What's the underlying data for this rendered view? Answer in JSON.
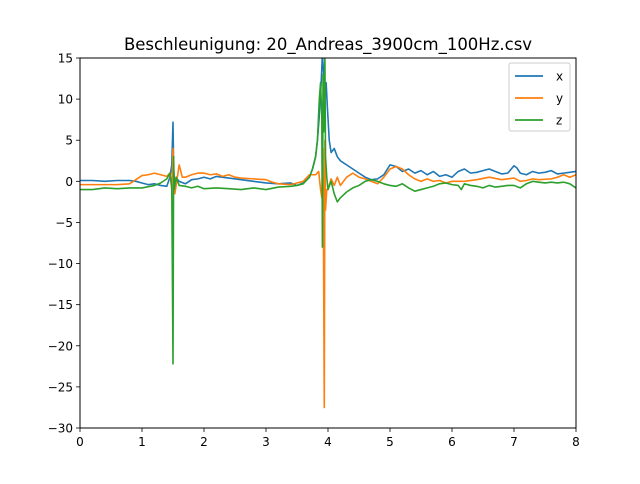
{
  "chart_data": {
    "type": "line",
    "title": "Beschleunigung: 20_Andreas_3900cm_100Hz.csv",
    "xlabel": "",
    "ylabel": "",
    "xlim": [
      0,
      8
    ],
    "ylim": [
      -30,
      15
    ],
    "xticks": [
      0,
      1,
      2,
      3,
      4,
      5,
      6,
      7,
      8
    ],
    "yticks": [
      15,
      10,
      5,
      0,
      -5,
      -10,
      -15,
      -20,
      -25,
      -30
    ],
    "grid": false,
    "legend_position": "top-right",
    "series": [
      {
        "name": "x",
        "color": "#1f77b4",
        "points": [
          [
            0,
            0.1
          ],
          [
            0.2,
            0.1
          ],
          [
            0.4,
            0.0
          ],
          [
            0.6,
            0.1
          ],
          [
            0.8,
            0.1
          ],
          [
            0.9,
            0.0
          ],
          [
            1.0,
            -0.2
          ],
          [
            1.1,
            -0.4
          ],
          [
            1.2,
            -0.3
          ],
          [
            1.3,
            -0.5
          ],
          [
            1.4,
            -0.6
          ],
          [
            1.45,
            0.5
          ],
          [
            1.48,
            2.0
          ],
          [
            1.5,
            7.2
          ],
          [
            1.51,
            1.5
          ],
          [
            1.53,
            -0.5
          ],
          [
            1.56,
            0.3
          ],
          [
            1.6,
            0.0
          ],
          [
            1.7,
            -0.3
          ],
          [
            1.8,
            0.2
          ],
          [
            1.9,
            0.3
          ],
          [
            2.0,
            0.5
          ],
          [
            2.1,
            0.3
          ],
          [
            2.2,
            0.6
          ],
          [
            2.4,
            0.4
          ],
          [
            2.6,
            0.2
          ],
          [
            2.8,
            0.0
          ],
          [
            3.0,
            -0.2
          ],
          [
            3.2,
            -0.3
          ],
          [
            3.4,
            -0.2
          ],
          [
            3.5,
            -0.5
          ],
          [
            3.6,
            -0.2
          ],
          [
            3.7,
            0.5
          ],
          [
            3.75,
            1.5
          ],
          [
            3.8,
            3.0
          ],
          [
            3.83,
            5.0
          ],
          [
            3.86,
            8.0
          ],
          [
            3.89,
            12.0
          ],
          [
            3.91,
            15.5
          ],
          [
            3.93,
            13.0
          ],
          [
            3.95,
            10.0
          ],
          [
            3.97,
            12.0
          ],
          [
            3.99,
            9.0
          ],
          [
            4.02,
            5.0
          ],
          [
            4.05,
            3.5
          ],
          [
            4.1,
            4.0
          ],
          [
            4.15,
            3.0
          ],
          [
            4.2,
            2.5
          ],
          [
            4.3,
            2.0
          ],
          [
            4.4,
            1.5
          ],
          [
            4.5,
            1.0
          ],
          [
            4.6,
            0.5
          ],
          [
            4.7,
            0.2
          ],
          [
            4.8,
            0.3
          ],
          [
            4.9,
            0.8
          ],
          [
            5.0,
            2.0
          ],
          [
            5.1,
            1.8
          ],
          [
            5.2,
            1.2
          ],
          [
            5.3,
            1.5
          ],
          [
            5.4,
            1.0
          ],
          [
            5.5,
            1.3
          ],
          [
            5.6,
            0.8
          ],
          [
            5.7,
            1.2
          ],
          [
            5.8,
            0.6
          ],
          [
            5.9,
            0.8
          ],
          [
            6.0,
            0.5
          ],
          [
            6.1,
            1.2
          ],
          [
            6.2,
            1.5
          ],
          [
            6.3,
            1.0
          ],
          [
            6.4,
            1.1
          ],
          [
            6.5,
            1.3
          ],
          [
            6.6,
            1.5
          ],
          [
            6.7,
            1.2
          ],
          [
            6.8,
            0.9
          ],
          [
            6.9,
            1.0
          ],
          [
            7.0,
            1.9
          ],
          [
            7.05,
            1.6
          ],
          [
            7.1,
            1.0
          ],
          [
            7.2,
            0.8
          ],
          [
            7.3,
            1.2
          ],
          [
            7.4,
            1.0
          ],
          [
            7.5,
            1.1
          ],
          [
            7.6,
            1.3
          ],
          [
            7.7,
            0.9
          ],
          [
            7.8,
            1.0
          ],
          [
            7.9,
            1.1
          ],
          [
            8.0,
            1.2
          ]
        ]
      },
      {
        "name": "y",
        "color": "#ff7f0e",
        "points": [
          [
            0,
            -0.4
          ],
          [
            0.2,
            -0.4
          ],
          [
            0.4,
            -0.4
          ],
          [
            0.6,
            -0.4
          ],
          [
            0.8,
            -0.3
          ],
          [
            0.9,
            0.2
          ],
          [
            1.0,
            0.7
          ],
          [
            1.1,
            0.8
          ],
          [
            1.2,
            1.0
          ],
          [
            1.3,
            0.8
          ],
          [
            1.4,
            0.6
          ],
          [
            1.45,
            1.0
          ],
          [
            1.48,
            -1.0
          ],
          [
            1.5,
            4.0
          ],
          [
            1.51,
            0.5
          ],
          [
            1.53,
            -1.5
          ],
          [
            1.56,
            0.0
          ],
          [
            1.6,
            2.0
          ],
          [
            1.65,
            0.5
          ],
          [
            1.7,
            0.5
          ],
          [
            1.8,
            0.8
          ],
          [
            1.9,
            1.0
          ],
          [
            2.0,
            1.0
          ],
          [
            2.1,
            0.8
          ],
          [
            2.2,
            0.9
          ],
          [
            2.3,
            0.6
          ],
          [
            2.4,
            0.8
          ],
          [
            2.5,
            0.5
          ],
          [
            2.6,
            0.4
          ],
          [
            2.8,
            0.3
          ],
          [
            3.0,
            0.2
          ],
          [
            3.1,
            -0.1
          ],
          [
            3.2,
            -0.3
          ],
          [
            3.4,
            -0.4
          ],
          [
            3.5,
            -0.2
          ],
          [
            3.6,
            0.0
          ],
          [
            3.7,
            0.8
          ],
          [
            3.8,
            0.8
          ],
          [
            3.85,
            1.2
          ],
          [
            3.88,
            -1.0
          ],
          [
            3.9,
            -2.0
          ],
          [
            3.92,
            4.0
          ],
          [
            3.94,
            -27.5
          ],
          [
            3.95,
            5.0
          ],
          [
            3.96,
            -3.5
          ],
          [
            3.98,
            -1.0
          ],
          [
            4.0,
            -1.0
          ],
          [
            4.05,
            0.3
          ],
          [
            4.1,
            -0.5
          ],
          [
            4.15,
            0.5
          ],
          [
            4.2,
            -0.5
          ],
          [
            4.3,
            0.5
          ],
          [
            4.4,
            1.0
          ],
          [
            4.5,
            0.5
          ],
          [
            4.6,
            0.3
          ],
          [
            4.7,
            0.0
          ],
          [
            4.8,
            -0.3
          ],
          [
            4.9,
            0.5
          ],
          [
            5.0,
            1.5
          ],
          [
            5.1,
            1.8
          ],
          [
            5.2,
            1.5
          ],
          [
            5.3,
            0.8
          ],
          [
            5.4,
            0.3
          ],
          [
            5.5,
            0.0
          ],
          [
            5.6,
            0.3
          ],
          [
            5.7,
            0.0
          ],
          [
            5.8,
            0.1
          ],
          [
            5.9,
            -0.2
          ],
          [
            6.0,
            0.0
          ],
          [
            6.2,
            0.0
          ],
          [
            6.4,
            0.2
          ],
          [
            6.6,
            0.5
          ],
          [
            6.8,
            0.2
          ],
          [
            7.0,
            0.4
          ],
          [
            7.1,
            0.0
          ],
          [
            7.2,
            0.1
          ],
          [
            7.3,
            0.3
          ],
          [
            7.4,
            0.2
          ],
          [
            7.6,
            0.3
          ],
          [
            7.7,
            0.5
          ],
          [
            7.8,
            0.8
          ],
          [
            7.9,
            0.5
          ],
          [
            8.0,
            0.8
          ]
        ]
      },
      {
        "name": "z",
        "color": "#2ca02c",
        "points": [
          [
            0,
            -1.0
          ],
          [
            0.2,
            -1.0
          ],
          [
            0.4,
            -0.8
          ],
          [
            0.6,
            -0.9
          ],
          [
            0.8,
            -0.8
          ],
          [
            1.0,
            -0.8
          ],
          [
            1.2,
            -0.5
          ],
          [
            1.3,
            -0.2
          ],
          [
            1.4,
            0.3
          ],
          [
            1.45,
            1.0
          ],
          [
            1.48,
            -0.5
          ],
          [
            1.5,
            -22.2
          ],
          [
            1.51,
            3.0
          ],
          [
            1.52,
            -1.0
          ],
          [
            1.55,
            0.5
          ],
          [
            1.6,
            -0.5
          ],
          [
            1.7,
            -0.6
          ],
          [
            1.8,
            -0.8
          ],
          [
            1.9,
            -0.6
          ],
          [
            2.0,
            -0.9
          ],
          [
            2.2,
            -0.8
          ],
          [
            2.4,
            -0.9
          ],
          [
            2.6,
            -1.0
          ],
          [
            2.8,
            -0.8
          ],
          [
            3.0,
            -1.0
          ],
          [
            3.2,
            -0.7
          ],
          [
            3.4,
            -0.6
          ],
          [
            3.5,
            -0.5
          ],
          [
            3.6,
            -0.3
          ],
          [
            3.7,
            0.5
          ],
          [
            3.75,
            1.5
          ],
          [
            3.8,
            3.0
          ],
          [
            3.83,
            5.0
          ],
          [
            3.86,
            10.0
          ],
          [
            3.88,
            12.0
          ],
          [
            3.9,
            8.0
          ],
          [
            3.91,
            -8.0
          ],
          [
            3.92,
            13.0
          ],
          [
            3.93,
            6.0
          ],
          [
            3.95,
            15.0
          ],
          [
            3.96,
            3.0
          ],
          [
            3.98,
            0.5
          ],
          [
            4.0,
            -1.0
          ],
          [
            4.05,
            0.0
          ],
          [
            4.1,
            -1.5
          ],
          [
            4.15,
            -2.5
          ],
          [
            4.2,
            -2.0
          ],
          [
            4.3,
            -1.3
          ],
          [
            4.4,
            -0.8
          ],
          [
            4.5,
            -0.5
          ],
          [
            4.6,
            0.0
          ],
          [
            4.7,
            0.2
          ],
          [
            4.8,
            0.0
          ],
          [
            4.9,
            -0.3
          ],
          [
            5.0,
            -0.5
          ],
          [
            5.1,
            -0.6
          ],
          [
            5.2,
            -0.3
          ],
          [
            5.3,
            -0.8
          ],
          [
            5.4,
            -1.2
          ],
          [
            5.5,
            -1.0
          ],
          [
            5.6,
            -0.8
          ],
          [
            5.7,
            -0.6
          ],
          [
            5.8,
            -0.3
          ],
          [
            5.9,
            -0.2
          ],
          [
            6.0,
            -0.4
          ],
          [
            6.1,
            -0.5
          ],
          [
            6.15,
            -1.0
          ],
          [
            6.2,
            -0.3
          ],
          [
            6.3,
            -0.5
          ],
          [
            6.4,
            -0.6
          ],
          [
            6.5,
            -0.8
          ],
          [
            6.6,
            -0.5
          ],
          [
            6.7,
            -0.7
          ],
          [
            6.8,
            -0.6
          ],
          [
            6.9,
            -0.5
          ],
          [
            7.0,
            -0.5
          ],
          [
            7.1,
            -0.8
          ],
          [
            7.2,
            -0.3
          ],
          [
            7.3,
            0.0
          ],
          [
            7.4,
            -0.1
          ],
          [
            7.5,
            -0.2
          ],
          [
            7.6,
            -0.1
          ],
          [
            7.7,
            -0.2
          ],
          [
            7.8,
            -0.1
          ],
          [
            7.9,
            -0.3
          ],
          [
            8.0,
            -0.8
          ]
        ]
      }
    ]
  }
}
